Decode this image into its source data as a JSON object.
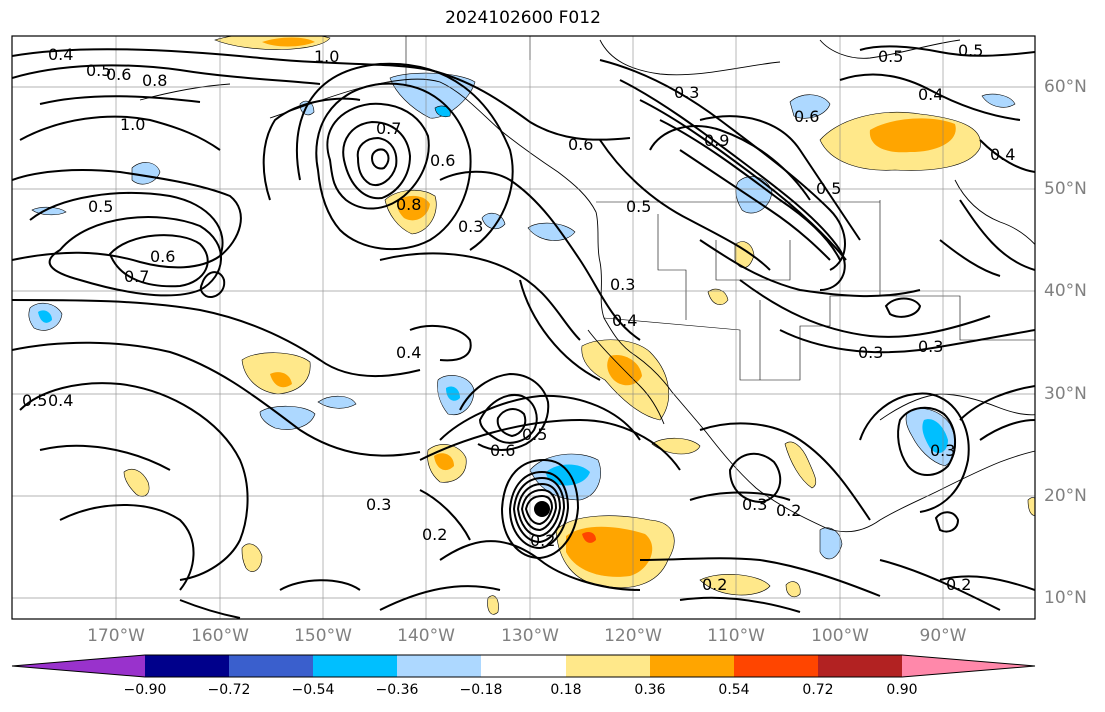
{
  "title": "2024102600 F012",
  "latitude_labels": [
    "60°N",
    "50°N",
    "40°N",
    "30°N",
    "20°N",
    "10°N"
  ],
  "longitude_labels": [
    "170°W",
    "160°W",
    "150°W",
    "140°W",
    "130°W",
    "120°W",
    "110°W",
    "100°W",
    "90°W"
  ],
  "colorbar": {
    "tick_labels": [
      "−0.90",
      "−0.72",
      "−0.54",
      "−0.36",
      "−0.18",
      "0.18",
      "0.36",
      "0.54",
      "0.72",
      "0.90"
    ],
    "colors": [
      "#9932cc",
      "#00008b",
      "#3a5fcd",
      "#00bfff",
      "#add8ff",
      "#ffffff",
      "#ffe88a",
      "#ffa500",
      "#ff4500",
      "#b22222",
      "#ff88aa"
    ]
  },
  "contour_labels": [
    "0.4",
    "0.5",
    "0.6",
    "0.8",
    "1.0",
    "1.0",
    "0.7",
    "0.8",
    "0.6",
    "0.5",
    "0.3",
    "0.7",
    "0.6",
    "0.5",
    "0.6",
    "0.5",
    "0.3",
    "0.9",
    "0.5",
    "0.4",
    "0.3",
    "0.4",
    "0.5",
    "0.6",
    "0.5",
    "0.4",
    "0.4",
    "0.3",
    "0.6",
    "0.5",
    "0.3",
    "0.2",
    "0.2",
    "0.3",
    "0.2",
    "0.4",
    "0.3",
    "0.3",
    "0.2",
    "0.2"
  ]
}
